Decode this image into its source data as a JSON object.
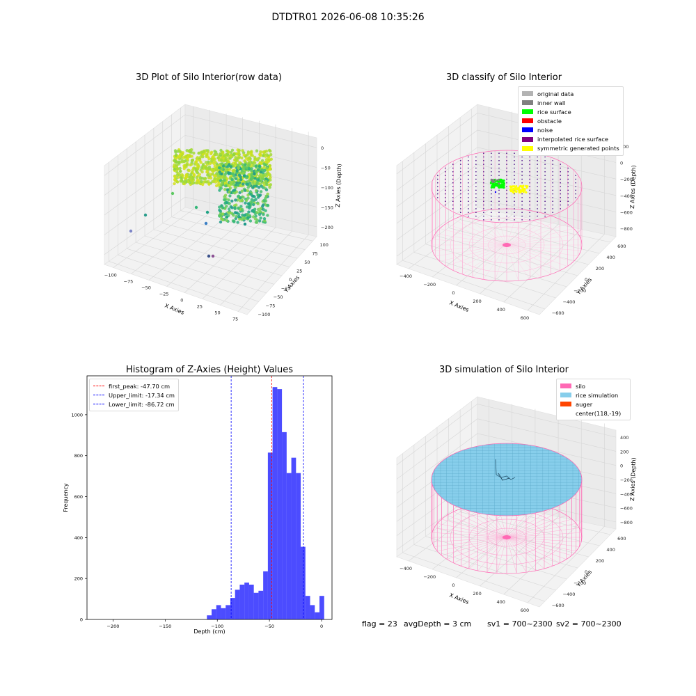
{
  "suptitle": "DTDTR01 2026-06-08 10:35:26",
  "chart_data": [
    {
      "type": "scatter",
      "title": "3D Plot of Silo Interior(row data)",
      "xlabel": "X Axies",
      "ylabel": "Y Axies",
      "zlabel": "Z Axies (Depth)",
      "x_ticks": [
        "−100",
        "−75",
        "−50",
        "−25",
        "0",
        "25",
        "50",
        "75"
      ],
      "y_ticks": [
        "−100",
        "−75",
        "−50",
        "−25",
        "0",
        "25",
        "50",
        "75",
        "100"
      ],
      "z_ticks": [
        "0",
        "−50",
        "−100",
        "−150",
        "−200"
      ],
      "xlim": [
        -110,
        85
      ],
      "ylim": [
        -105,
        110
      ],
      "zlim": [
        -230,
        0
      ],
      "colormap": "viridis"
    },
    {
      "type": "scatter",
      "title": "3D classify of Silo Interior",
      "xlabel": "X Axies",
      "ylabel": "Y Axies",
      "zlabel": "Z Axies (Depth)",
      "x_ticks": [
        "−400",
        "−200",
        "0",
        "200",
        "400",
        "600"
      ],
      "y_ticks": [
        "−600",
        "−400",
        "−200",
        "0",
        "200",
        "400",
        "600"
      ],
      "z_ticks": [
        "200",
        "0",
        "−200",
        "−400",
        "−600",
        "−800"
      ],
      "legend": [
        {
          "label": "original data",
          "color": "#b3b3b3"
        },
        {
          "label": "inner wall",
          "color": "#808080"
        },
        {
          "label": "rice surface",
          "color": "#00ff00"
        },
        {
          "label": "obstacle",
          "color": "#ff0000"
        },
        {
          "label": "noise",
          "color": "#0000ff"
        },
        {
          "label": "interpolated rice surface",
          "color": "#800080"
        },
        {
          "label": "symmetric generated points",
          "color": "#ffff00"
        }
      ],
      "legend_placement": "upper-right"
    },
    {
      "type": "bar",
      "title": "Histogram of Z-Axies (Height) Values",
      "xlabel": "Depth (cm)",
      "ylabel": "Frequency",
      "xlim": [
        -225,
        10
      ],
      "ylim": [
        0,
        1190
      ],
      "x_ticks": [
        -200,
        -150,
        -100,
        -50,
        0
      ],
      "y_ticks": [
        0,
        200,
        400,
        600,
        800,
        1000
      ],
      "bin_width": 4.5,
      "bin_start": -110,
      "values": [
        20,
        50,
        70,
        55,
        70,
        105,
        145,
        170,
        180,
        170,
        130,
        140,
        235,
        815,
        1135,
        1125,
        915,
        715,
        790,
        715,
        355,
        115,
        70,
        35,
        115
      ],
      "bar_color": "#0000ff",
      "lines": [
        {
          "label": "first_peak: -47.70 cm",
          "x": -47.7,
          "color": "#ff0000"
        },
        {
          "label": "Upper_limit: -17.34 cm",
          "x": -17.34,
          "color": "#0000ff"
        },
        {
          "label": "Lower_limit: -86.72 cm",
          "x": -86.72,
          "color": "#0000ff"
        }
      ],
      "legend_placement": "upper-left"
    },
    {
      "type": "scatter",
      "title": "3D simulation of Silo Interior",
      "xlabel": "X Axies",
      "ylabel": "Y Axies",
      "zlabel": "Z Axies (Depth)",
      "x_ticks": [
        "−400",
        "−200",
        "0",
        "200",
        "400",
        "600"
      ],
      "y_ticks": [
        "−600",
        "−400",
        "−200",
        "0",
        "200",
        "400",
        "600"
      ],
      "z_ticks": [
        "400",
        "200",
        "0",
        "−200",
        "−400",
        "−600",
        "−800"
      ],
      "legend": [
        {
          "label": "silo",
          "color": "#ff69b4"
        },
        {
          "label": "rice simulation",
          "color": "#87ceeb"
        },
        {
          "label": "auger",
          "color": "#ff4500"
        },
        {
          "label": "center(118,-19)",
          "color": ""
        }
      ],
      "legend_placement": "upper-right"
    }
  ],
  "footer": {
    "flag": "flag = 23",
    "avg": "avgDepth = 3 cm",
    "sv1": "sv1 = 700~2300",
    "sv2": "sv2 = 700~2300"
  }
}
